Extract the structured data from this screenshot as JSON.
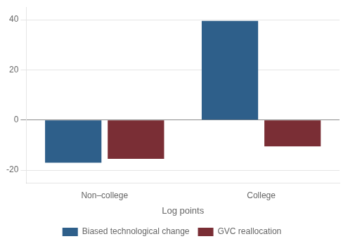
{
  "chart_data": {
    "type": "bar",
    "xlabel": "Log points",
    "categories": [
      "Non–college",
      "College"
    ],
    "series": [
      {
        "name": "Biased technological change",
        "color": "#2E5F8A",
        "values": [
          -17,
          39.5
        ]
      },
      {
        "name": "GVC reallocation",
        "color": "#7A2E35",
        "values": [
          -15.5,
          -10.5
        ]
      }
    ],
    "ylim": [
      -25,
      45
    ],
    "yticks": [
      -20,
      0,
      20,
      40
    ],
    "grid": true,
    "legend": "bottom"
  }
}
